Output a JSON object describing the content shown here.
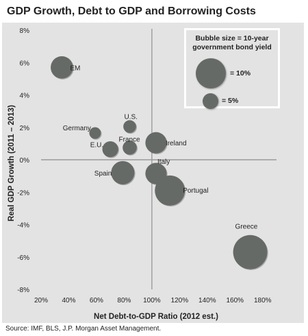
{
  "title": "GDP Growth, Debt to GDP and Borrowing Costs",
  "source": "Source: IMF, BLS, J.P. Morgan Asset Management.",
  "legend": {
    "title_line1": "Bubble size = 10-year",
    "title_line2": "government bond yield",
    "large_label": "= 10%",
    "small_label": "= 5%",
    "large_value": 10,
    "small_value": 5
  },
  "colors": {
    "bubble": "#666a66",
    "panel": "#e3e3e3",
    "axis": "#9a9a9a"
  },
  "chart_data": {
    "type": "scatter",
    "title": "GDP Growth, Debt to GDP and Borrowing Costs",
    "xlabel": "Net Debt-to-GDP  Ratio (2012 est.)",
    "ylabel": "Real GDP Growth (2011 – 2013)",
    "xlim": [
      20,
      190
    ],
    "ylim": [
      -8,
      8
    ],
    "x_ticks": [
      "20%",
      "40%",
      "60%",
      "80%",
      "100%",
      "120%",
      "140%",
      "160%",
      "180%"
    ],
    "x_tick_values": [
      20,
      40,
      60,
      80,
      100,
      120,
      140,
      160,
      180
    ],
    "y_ticks": [
      "8%",
      "6%",
      "4%",
      "2%",
      "0%",
      "-2%",
      "-4%",
      "-6%",
      "-8%"
    ],
    "y_tick_values": [
      8,
      6,
      4,
      2,
      0,
      -2,
      -4,
      -6,
      -8
    ],
    "reference_lines": {
      "x": 100,
      "y": 0
    },
    "bubble_size_meaning": "10-year government bond yield",
    "points": [
      {
        "label": "EM",
        "x": 35,
        "y": 5.7,
        "size": 5.5
      },
      {
        "label": "Germany",
        "x": 59,
        "y": 1.65,
        "size": 1.5
      },
      {
        "label": "U.S.",
        "x": 84,
        "y": 2.05,
        "size": 1.8
      },
      {
        "label": "France",
        "x": 84,
        "y": 0.75,
        "size": 2.2
      },
      {
        "label": "E.U.",
        "x": 70,
        "y": 0.65,
        "size": 2.8
      },
      {
        "label": "Ireland",
        "x": 103,
        "y": 1.05,
        "size": 5.0
      },
      {
        "label": "Spain",
        "x": 79,
        "y": -0.8,
        "size": 6.0
      },
      {
        "label": "Italy",
        "x": 103,
        "y": -0.85,
        "size": 5.0
      },
      {
        "label": "Portugal",
        "x": 113,
        "y": -1.9,
        "size": 10.0
      },
      {
        "label": "Greece",
        "x": 171,
        "y": -5.7,
        "size": 17.0
      }
    ]
  }
}
